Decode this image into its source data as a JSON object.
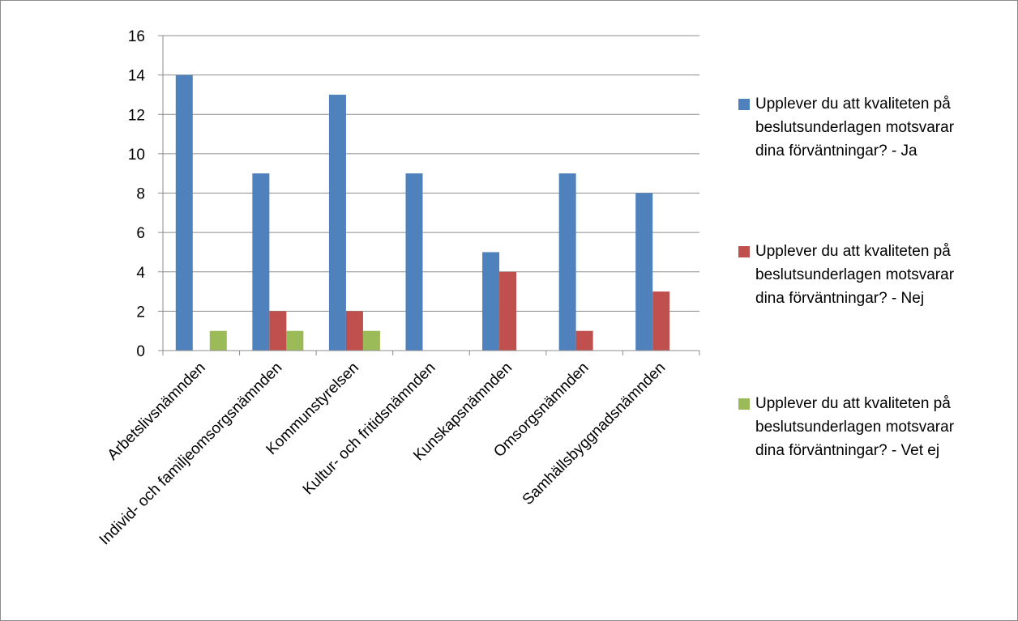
{
  "chart_data": {
    "type": "bar",
    "title": "",
    "xlabel": "",
    "ylabel": "",
    "ylim": [
      0,
      16
    ],
    "yticks": [
      0,
      2,
      4,
      6,
      8,
      10,
      12,
      14,
      16
    ],
    "grid": true,
    "legend_position": "right",
    "categories": [
      "Arbetslivsnämnden",
      "Individ- och familjeomsorgsnämnden",
      "Kommunstyrelsen",
      "Kultur- och fritidsnämnden",
      "Kunskapsnämnden",
      "Omsorgsnämnden",
      "Samhällsbyggnadsnämnden"
    ],
    "series": [
      {
        "name": "Upplever du att kvaliteten på beslutsunderlagen motsvarar dina förväntningar? - Ja",
        "legend_lines": [
          "Upplever du att kvaliteten på",
          "beslutsunderlagen motsvarar",
          "dina förväntningar? - Ja"
        ],
        "color": "#4f81bd",
        "values": [
          14,
          9,
          13,
          9,
          5,
          9,
          8
        ]
      },
      {
        "name": "Upplever du att kvaliteten på beslutsunderlagen motsvarar dina förväntningar? - Nej",
        "legend_lines": [
          "Upplever du att kvaliteten på",
          "beslutsunderlagen motsvarar",
          "dina förväntningar? - Nej"
        ],
        "color": "#c0504d",
        "values": [
          0,
          2,
          2,
          0,
          4,
          1,
          3
        ]
      },
      {
        "name": "Upplever du att kvaliteten på beslutsunderlagen motsvarar dina förväntningar? - Vet ej",
        "legend_lines": [
          "Upplever du att kvaliteten på",
          "beslutsunderlagen motsvarar",
          "dina förväntningar? - Vet ej"
        ],
        "color": "#9bbb59",
        "values": [
          1,
          1,
          1,
          0,
          0,
          0,
          0
        ]
      }
    ]
  }
}
